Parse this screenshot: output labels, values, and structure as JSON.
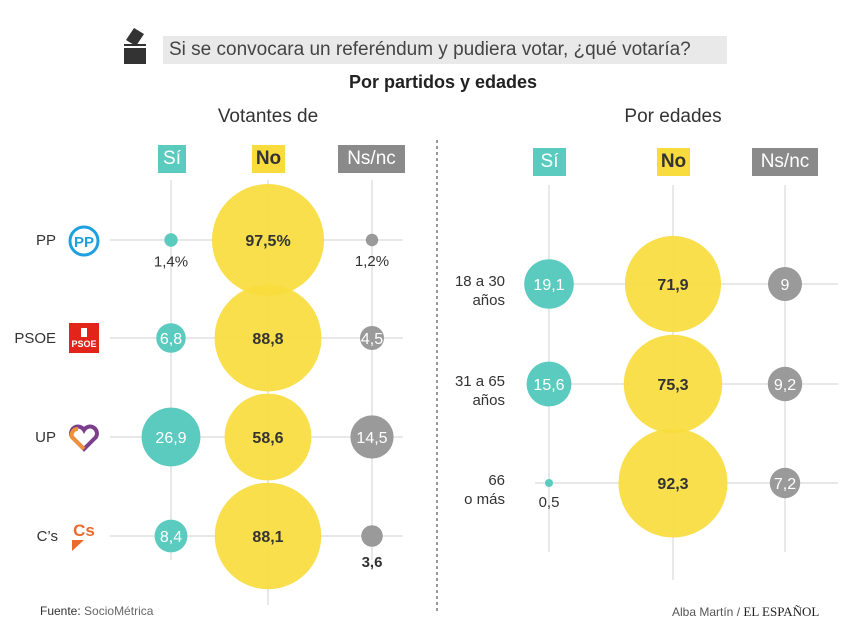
{
  "header": {
    "title": "Si se convocara un referéndum y pudiera votar, ¿qué votaría?",
    "subtitle": "Por partidos y edades",
    "icon": "ballot-box-icon"
  },
  "colors": {
    "si": "#5ccbbf",
    "no": "#f8dc3d",
    "nsnc": "#9a9a9a",
    "grid": "#d0d0d0"
  },
  "chart_data": [
    {
      "type": "bubble",
      "title": "Votantes de",
      "columns": [
        "Sí",
        "No",
        "Ns/nc"
      ],
      "rows": [
        {
          "label": "PP",
          "logo": "pp-logo",
          "values": [
            1.4,
            97.5,
            1.2
          ],
          "labels": [
            "1,4%",
            "97,5%",
            "1,2%"
          ]
        },
        {
          "label": "PSOE",
          "logo": "psoe-logo",
          "values": [
            6.8,
            88.8,
            4.5
          ],
          "labels": [
            "6,8",
            "88,8",
            "4,5"
          ]
        },
        {
          "label": "UP",
          "logo": "up-logo",
          "values": [
            26.9,
            58.6,
            14.5
          ],
          "labels": [
            "26,9",
            "58,6",
            "14,5"
          ]
        },
        {
          "label": "C’s",
          "logo": "cs-logo",
          "values": [
            8.4,
            88.1,
            3.6
          ],
          "labels": [
            "8,4",
            "88,1",
            "3,6"
          ]
        }
      ]
    },
    {
      "type": "bubble",
      "title": "Por edades",
      "columns": [
        "Sí",
        "No",
        "Ns/nc"
      ],
      "rows": [
        {
          "label": "18 a 30",
          "label2": "años",
          "values": [
            19.1,
            71.9,
            9
          ],
          "labels": [
            "19,1",
            "71,9",
            "9"
          ]
        },
        {
          "label": "31 a 65",
          "label2": "años",
          "values": [
            15.6,
            75.3,
            9.2
          ],
          "labels": [
            "15,6",
            "75,3",
            "9,2"
          ]
        },
        {
          "label": "66",
          "label2": "o más",
          "values": [
            0.5,
            92.3,
            7.2
          ],
          "labels": [
            "0,5",
            "92,3",
            "7,2"
          ]
        }
      ]
    }
  ],
  "footer": {
    "source_label": "Fuente:",
    "source": "SocioMétrica",
    "author": "Alba Martín /",
    "brand": "EL ESPAÑOL"
  }
}
